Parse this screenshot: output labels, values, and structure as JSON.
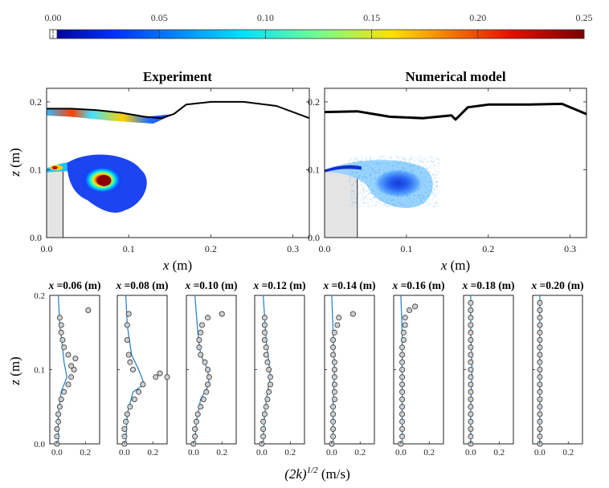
{
  "colorbar": {
    "ticks": [
      "0.00",
      "0.05",
      "0.10",
      "0.15",
      "0.20",
      "0.25"
    ],
    "range": [
      0,
      0.25
    ],
    "colormap": "jet"
  },
  "chart_data": [
    {
      "type": "heatmap",
      "title": "Experiment",
      "xlabel": "x (m)",
      "ylabel": "z (m)",
      "xlim": [
        0,
        0.32
      ],
      "ylim": [
        0,
        0.22
      ],
      "xticks": [
        "0.0",
        "0.1",
        "0.2",
        "0.3"
      ],
      "yticks": [
        "0.0",
        "0.1",
        "0.2"
      ],
      "free_surface": [
        [
          0,
          0.19
        ],
        [
          0.03,
          0.19
        ],
        [
          0.06,
          0.188
        ],
        [
          0.09,
          0.184
        ],
        [
          0.12,
          0.178
        ],
        [
          0.14,
          0.176
        ],
        [
          0.155,
          0.182
        ],
        [
          0.17,
          0.196
        ],
        [
          0.2,
          0.2
        ],
        [
          0.24,
          0.2
        ],
        [
          0.28,
          0.194
        ],
        [
          0.32,
          0.176
        ]
      ],
      "obstacle": {
        "x": [
          0,
          0.02
        ],
        "z": [
          0,
          0.1
        ]
      },
      "features": [
        {
          "label": "vortex",
          "x": 0.07,
          "z": 0.085,
          "peak_value": 0.25
        },
        {
          "label": "surface layer",
          "x": [
            0,
            0.16
          ],
          "z": [
            0.17,
            0.19
          ],
          "peak_value": 0.2
        }
      ]
    },
    {
      "type": "heatmap",
      "title": "Numerical model",
      "xlabel": "x (m)",
      "ylabel": "",
      "xlim": [
        0,
        0.32
      ],
      "ylim": [
        0,
        0.22
      ],
      "xticks": [
        "0.0",
        "0.1",
        "0.2",
        "0.3"
      ],
      "yticks": [
        "0.0",
        "0.1",
        "0.2"
      ],
      "free_surface": [
        [
          0,
          0.185
        ],
        [
          0.04,
          0.186
        ],
        [
          0.08,
          0.178
        ],
        [
          0.12,
          0.176
        ],
        [
          0.155,
          0.18
        ],
        [
          0.16,
          0.174
        ],
        [
          0.175,
          0.192
        ],
        [
          0.2,
          0.196
        ],
        [
          0.25,
          0.196
        ],
        [
          0.29,
          0.197
        ],
        [
          0.32,
          0.182
        ]
      ],
      "obstacle": {
        "x": [
          0,
          0.04
        ],
        "z": [
          0,
          0.1
        ]
      },
      "features": [
        {
          "label": "vortex",
          "x": 0.085,
          "z": 0.08,
          "peak_value": 0.07
        }
      ]
    },
    {
      "type": "line",
      "ylabel": "z (m)",
      "xlabel_prefix": "(2k)",
      "xlabel_sup": "1/2",
      "xlabel_unit": "(m/s)",
      "ylim": [
        0,
        0.2
      ],
      "xlim": [
        -0.05,
        0.3
      ],
      "yticks": [
        "0.0",
        "0.1",
        "0.2"
      ],
      "xticks": [
        "0.0",
        "0.2"
      ],
      "xticks_full": [
        "0.0",
        "0.2",
        "0.2"
      ],
      "profiles": [
        {
          "title": "x =0.06 (m)",
          "xticks": [
            "0.0",
            "0.2"
          ],
          "model": [
            [
              0.01,
              0
            ],
            [
              0.01,
              0.04
            ],
            [
              0.03,
              0.07
            ],
            [
              0.07,
              0.09
            ],
            [
              0.05,
              0.11
            ],
            [
              0.04,
              0.13
            ],
            [
              0.02,
              0.16
            ],
            [
              0.01,
              0.2
            ]
          ],
          "experiment": [
            [
              0,
              0
            ],
            [
              0,
              0.01
            ],
            [
              0,
              0.02
            ],
            [
              0.01,
              0.03
            ],
            [
              0.01,
              0.04
            ],
            [
              0.02,
              0.05
            ],
            [
              0.03,
              0.06
            ],
            [
              0.05,
              0.07
            ],
            [
              0.08,
              0.08
            ],
            [
              0.1,
              0.09
            ],
            [
              0.12,
              0.1
            ],
            [
              0.1,
              0.105
            ],
            [
              0.13,
              0.115
            ],
            [
              0.08,
              0.12
            ],
            [
              0.05,
              0.13
            ],
            [
              0.04,
              0.14
            ],
            [
              0.03,
              0.15
            ],
            [
              0.03,
              0.16
            ],
            [
              0.02,
              0.17
            ],
            [
              0.22,
              0.18
            ]
          ]
        },
        {
          "title": "x =0.08 (m)",
          "xticks": [
            "0.0",
            "0.2"
          ],
          "model": [
            [
              0.01,
              0
            ],
            [
              0.02,
              0.04
            ],
            [
              0.06,
              0.07
            ],
            [
              0.14,
              0.08
            ],
            [
              0.1,
              0.1
            ],
            [
              0.05,
              0.12
            ],
            [
              0.02,
              0.16
            ],
            [
              0.01,
              0.2
            ]
          ],
          "experiment": [
            [
              0,
              0
            ],
            [
              0,
              0.01
            ],
            [
              0,
              0.02
            ],
            [
              0.01,
              0.03
            ],
            [
              0.02,
              0.04
            ],
            [
              0.04,
              0.05
            ],
            [
              0.07,
              0.06
            ],
            [
              0.1,
              0.07
            ],
            [
              0.13,
              0.08
            ],
            [
              0.22,
              0.09
            ],
            [
              0.25,
              0.095
            ],
            [
              0.3,
              0.09
            ],
            [
              0.06,
              0.1
            ],
            [
              0.04,
              0.11
            ],
            [
              0.03,
              0.12
            ],
            [
              0.02,
              0.14
            ],
            [
              0.02,
              0.16
            ],
            [
              0.03,
              0.175
            ]
          ]
        },
        {
          "title": "x =0.10 (m)",
          "xticks": [
            "0.0",
            "0.2"
          ],
          "model": [
            [
              0.01,
              0
            ],
            [
              0.02,
              0.03
            ],
            [
              0.05,
              0.06
            ],
            [
              0.11,
              0.08
            ],
            [
              0.1,
              0.1
            ],
            [
              0.05,
              0.12
            ],
            [
              0.03,
              0.15
            ],
            [
              0.01,
              0.2
            ]
          ],
          "experiment": [
            [
              0,
              0
            ],
            [
              0.01,
              0.01
            ],
            [
              0.01,
              0.02
            ],
            [
              0.02,
              0.03
            ],
            [
              0.03,
              0.04
            ],
            [
              0.05,
              0.05
            ],
            [
              0.07,
              0.06
            ],
            [
              0.09,
              0.07
            ],
            [
              0.1,
              0.08
            ],
            [
              0.11,
              0.09
            ],
            [
              0.1,
              0.1
            ],
            [
              0.08,
              0.11
            ],
            [
              0.05,
              0.12
            ],
            [
              0.04,
              0.13
            ],
            [
              0.04,
              0.14
            ],
            [
              0.05,
              0.15
            ],
            [
              0.06,
              0.16
            ],
            [
              0.1,
              0.17
            ],
            [
              0.2,
              0.175
            ]
          ]
        },
        {
          "title": "x =0.12 (m)",
          "xticks": [
            "0.0",
            "0.2"
          ],
          "model": [
            [
              0.01,
              0
            ],
            [
              0.02,
              0.04
            ],
            [
              0.04,
              0.07
            ],
            [
              0.06,
              0.09
            ],
            [
              0.05,
              0.11
            ],
            [
              0.03,
              0.14
            ],
            [
              0.01,
              0.2
            ]
          ],
          "experiment": [
            [
              0,
              0
            ],
            [
              0.01,
              0.01
            ],
            [
              0.01,
              0.02
            ],
            [
              0.01,
              0.03
            ],
            [
              0.02,
              0.04
            ],
            [
              0.03,
              0.05
            ],
            [
              0.04,
              0.06
            ],
            [
              0.05,
              0.07
            ],
            [
              0.06,
              0.08
            ],
            [
              0.06,
              0.09
            ],
            [
              0.05,
              0.1
            ],
            [
              0.04,
              0.11
            ],
            [
              0.03,
              0.12
            ],
            [
              0.03,
              0.13
            ],
            [
              0.02,
              0.14
            ],
            [
              0.02,
              0.15
            ],
            [
              0.02,
              0.16
            ],
            [
              0.02,
              0.17
            ]
          ]
        },
        {
          "title": "x =0.14 (m)",
          "xticks": [
            "0.0",
            "0.2"
          ],
          "model": [
            [
              0.01,
              0
            ],
            [
              0.01,
              0.05
            ],
            [
              0.02,
              0.1
            ],
            [
              0.01,
              0.15
            ],
            [
              0.0,
              0.2
            ]
          ],
          "experiment": [
            [
              0,
              0
            ],
            [
              0.01,
              0.01
            ],
            [
              0.01,
              0.02
            ],
            [
              0.01,
              0.03
            ],
            [
              0.01,
              0.04
            ],
            [
              0.01,
              0.05
            ],
            [
              0.02,
              0.06
            ],
            [
              0.02,
              0.07
            ],
            [
              0.02,
              0.08
            ],
            [
              0.02,
              0.09
            ],
            [
              0.02,
              0.1
            ],
            [
              0.02,
              0.11
            ],
            [
              0.01,
              0.12
            ],
            [
              0.01,
              0.13
            ],
            [
              0.01,
              0.14
            ],
            [
              0.02,
              0.15
            ],
            [
              0.04,
              0.16
            ],
            [
              0.05,
              0.17
            ],
            [
              0.15,
              0.175
            ]
          ]
        },
        {
          "title": "x =0.16 (m)",
          "xticks": [
            "0.0",
            "0.2"
          ],
          "model": [
            [
              0.01,
              0
            ],
            [
              0.01,
              0.05
            ],
            [
              0.01,
              0.1
            ],
            [
              0.01,
              0.15
            ],
            [
              0.0,
              0.2
            ]
          ],
          "experiment": [
            [
              0,
              0
            ],
            [
              0.01,
              0.01
            ],
            [
              0.01,
              0.02
            ],
            [
              0.01,
              0.03
            ],
            [
              0.01,
              0.04
            ],
            [
              0.01,
              0.05
            ],
            [
              0.01,
              0.06
            ],
            [
              0.01,
              0.07
            ],
            [
              0.01,
              0.08
            ],
            [
              0.01,
              0.09
            ],
            [
              0.01,
              0.1
            ],
            [
              0.01,
              0.11
            ],
            [
              0.01,
              0.12
            ],
            [
              0.01,
              0.13
            ],
            [
              0.02,
              0.14
            ],
            [
              0.02,
              0.15
            ],
            [
              0.03,
              0.16
            ],
            [
              0.03,
              0.17
            ],
            [
              0.06,
              0.18
            ],
            [
              0.1,
              0.185
            ]
          ]
        },
        {
          "title": "x =0.18 (m)",
          "xticks": [
            "0.0",
            "0.2"
          ],
          "model": [
            [
              0.0,
              0
            ],
            [
              0.0,
              0.05
            ],
            [
              0.01,
              0.1
            ],
            [
              0.0,
              0.15
            ],
            [
              0.0,
              0.2
            ]
          ],
          "experiment": [
            [
              0,
              0
            ],
            [
              0,
              0.01
            ],
            [
              0,
              0.02
            ],
            [
              0,
              0.03
            ],
            [
              0,
              0.04
            ],
            [
              0,
              0.05
            ],
            [
              0,
              0.06
            ],
            [
              0,
              0.07
            ],
            [
              0,
              0.08
            ],
            [
              0,
              0.09
            ],
            [
              0,
              0.1
            ],
            [
              0,
              0.11
            ],
            [
              0,
              0.12
            ],
            [
              0,
              0.13
            ],
            [
              0,
              0.14
            ],
            [
              0,
              0.15
            ],
            [
              0,
              0.16
            ],
            [
              0,
              0.17
            ],
            [
              0,
              0.18
            ],
            [
              0,
              0.19
            ]
          ]
        },
        {
          "title": "x =0.20 (m)",
          "xticks": [
            "0.0",
            "0.2"
          ],
          "model": [
            [
              0.0,
              0
            ],
            [
              0.0,
              0.05
            ],
            [
              0.0,
              0.1
            ],
            [
              0.0,
              0.15
            ],
            [
              0.0,
              0.2
            ]
          ],
          "experiment": [
            [
              0,
              0
            ],
            [
              0,
              0.01
            ],
            [
              0,
              0.02
            ],
            [
              0,
              0.03
            ],
            [
              0,
              0.04
            ],
            [
              0,
              0.05
            ],
            [
              0,
              0.06
            ],
            [
              0,
              0.07
            ],
            [
              0,
              0.08
            ],
            [
              0,
              0.09
            ],
            [
              0,
              0.1
            ],
            [
              0,
              0.11
            ],
            [
              0,
              0.12
            ],
            [
              0,
              0.13
            ],
            [
              0,
              0.14
            ],
            [
              0,
              0.15
            ],
            [
              0,
              0.16
            ],
            [
              0,
              0.17
            ],
            [
              0,
              0.18
            ],
            [
              0,
              0.19
            ]
          ]
        }
      ]
    }
  ]
}
